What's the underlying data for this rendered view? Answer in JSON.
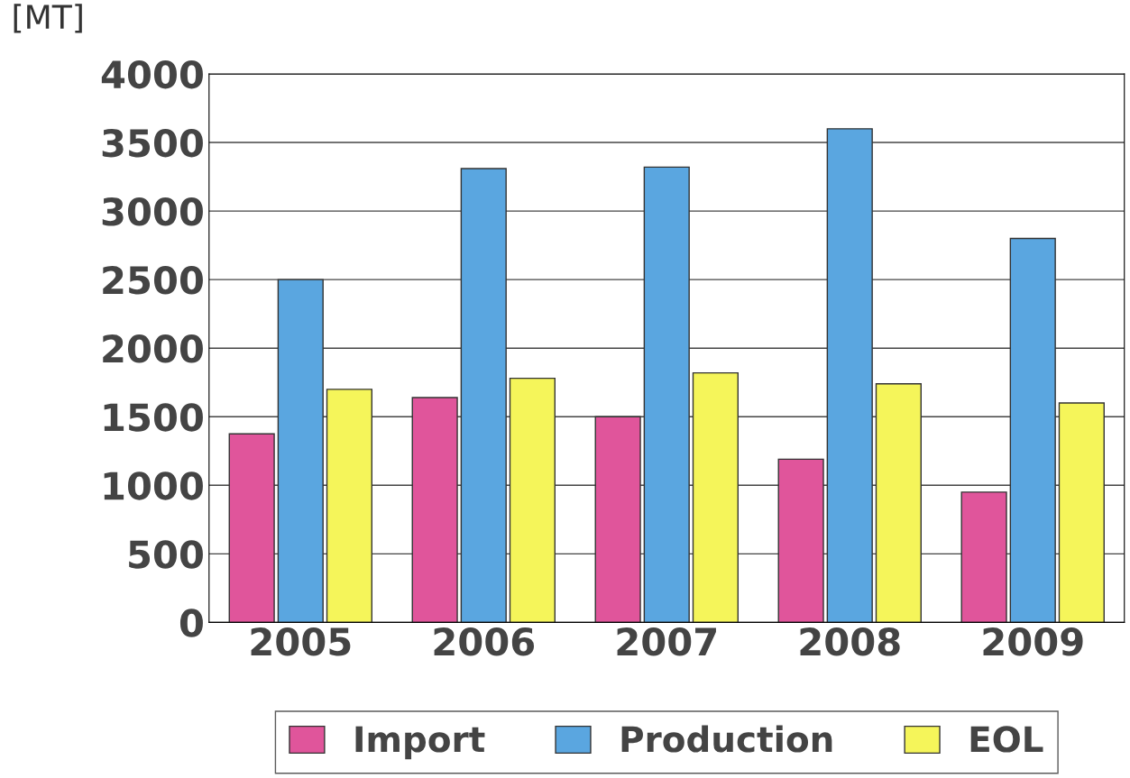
{
  "chart_data": {
    "type": "bar",
    "ylabel": "[MT]",
    "categories": [
      "2005",
      "2006",
      "2007",
      "2008",
      "2009"
    ],
    "series": [
      {
        "name": "Import",
        "color": "#e0559b",
        "values": [
          1375,
          1640,
          1500,
          1190,
          950
        ]
      },
      {
        "name": "Production",
        "color": "#5aa6e0",
        "values": [
          2500,
          3310,
          3320,
          3600,
          2800
        ]
      },
      {
        "name": "EOL",
        "color": "#f5f55a",
        "values": [
          1700,
          1780,
          1820,
          1740,
          1600
        ]
      }
    ],
    "ylim": [
      0,
      4000
    ],
    "yticks": [
      0,
      500,
      1000,
      1500,
      2000,
      2500,
      3000,
      3500,
      4000
    ],
    "grid": "y",
    "legend": "bottom"
  }
}
